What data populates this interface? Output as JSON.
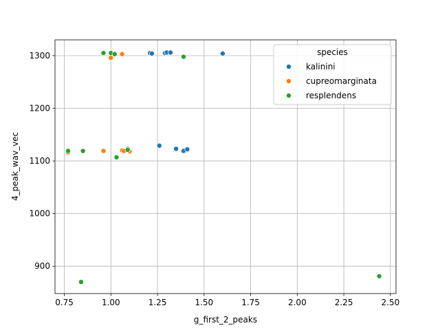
{
  "chart_data": {
    "type": "scatter",
    "xlabel": "g_first_2_peaks",
    "ylabel": "4_peak_wav_vec",
    "xlim": [
      0.7,
      2.53
    ],
    "ylim": [
      848,
      1330
    ],
    "x_ticks": [
      0.75,
      1.0,
      1.25,
      1.5,
      1.75,
      2.0,
      2.25,
      2.5
    ],
    "x_tick_labels": [
      "0.75",
      "1.00",
      "1.25",
      "1.50",
      "1.75",
      "2.00",
      "2.25",
      "2.50"
    ],
    "y_ticks": [
      900,
      1000,
      1100,
      1200,
      1300
    ],
    "y_tick_labels": [
      "900",
      "1000",
      "1100",
      "1200",
      "1300"
    ],
    "grid": true,
    "legend": {
      "title": "species",
      "placement": "top-right"
    },
    "series": [
      {
        "name": "kalinini",
        "color": "#1f77b4",
        "points": [
          {
            "x": 1.21,
            "y": 1305
          },
          {
            "x": 1.22,
            "y": 1304
          },
          {
            "x": 1.29,
            "y": 1305
          },
          {
            "x": 1.3,
            "y": 1306
          },
          {
            "x": 1.32,
            "y": 1306
          },
          {
            "x": 1.6,
            "y": 1304
          },
          {
            "x": 1.26,
            "y": 1129
          },
          {
            "x": 1.35,
            "y": 1123
          },
          {
            "x": 1.39,
            "y": 1119
          },
          {
            "x": 1.41,
            "y": 1122
          }
        ]
      },
      {
        "name": "cupreomarginata",
        "color": "#ff7f0e",
        "points": [
          {
            "x": 1.0,
            "y": 1296
          },
          {
            "x": 1.06,
            "y": 1303
          },
          {
            "x": 0.77,
            "y": 1116
          },
          {
            "x": 0.96,
            "y": 1119
          },
          {
            "x": 1.06,
            "y": 1120
          },
          {
            "x": 1.07,
            "y": 1119
          },
          {
            "x": 1.1,
            "y": 1118
          }
        ]
      },
      {
        "name": "resplendens",
        "color": "#2ca02c",
        "points": [
          {
            "x": 0.96,
            "y": 1305
          },
          {
            "x": 1.0,
            "y": 1305
          },
          {
            "x": 1.02,
            "y": 1303
          },
          {
            "x": 1.39,
            "y": 1298
          },
          {
            "x": 0.77,
            "y": 1119
          },
          {
            "x": 0.85,
            "y": 1119
          },
          {
            "x": 1.03,
            "y": 1107
          },
          {
            "x": 1.09,
            "y": 1123
          },
          {
            "x": 1.09,
            "y": 1121
          },
          {
            "x": 0.84,
            "y": 870
          },
          {
            "x": 2.44,
            "y": 881
          }
        ]
      }
    ]
  }
}
